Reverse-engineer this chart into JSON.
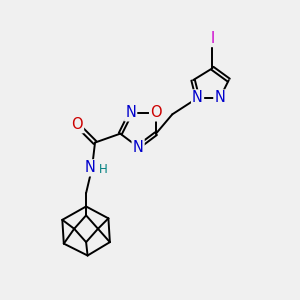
{
  "background_color": "#f0f0f0",
  "figsize": [
    3.0,
    3.0
  ],
  "dpi": 100,
  "atom_colors": {
    "C": "#000000",
    "N": "#0000cc",
    "O": "#cc0000",
    "I": "#cc00cc",
    "H": "#008080"
  },
  "bond_color": "#000000",
  "bond_width": 1.4,
  "font_size_atoms": 10.5,
  "font_size_small": 8.5,
  "xlim": [
    0,
    10
  ],
  "ylim": [
    0,
    10
  ]
}
